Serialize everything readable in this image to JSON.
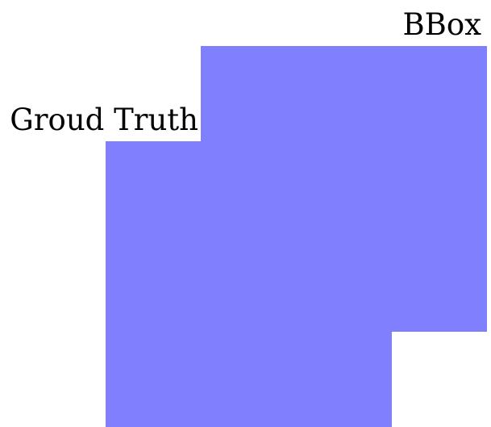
{
  "diagram": {
    "fill_color": "#8080ff",
    "ground_truth": {
      "label": "Groud Truth"
    },
    "bbox": {
      "label": "BBox"
    }
  }
}
